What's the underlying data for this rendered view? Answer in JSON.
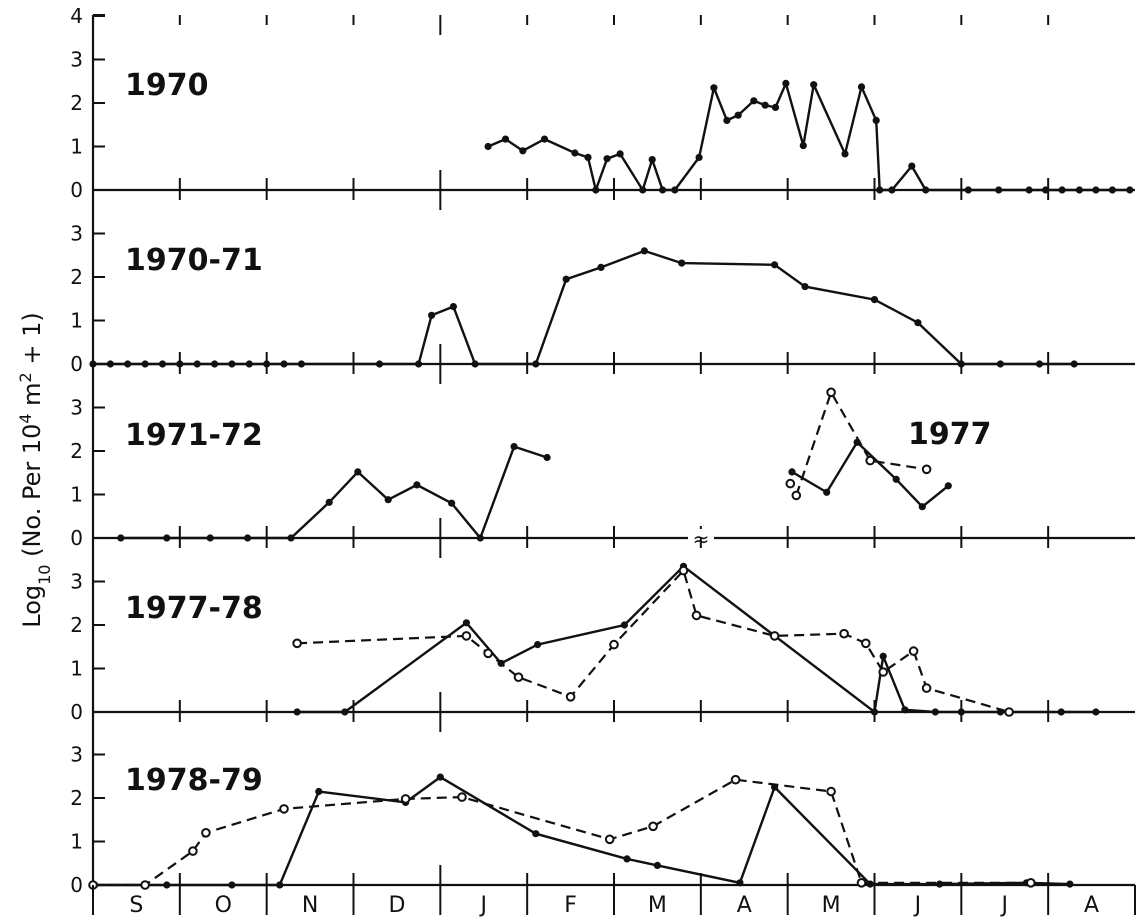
{
  "chart_data": {
    "type": "line",
    "ylabel": "Log10 (No. Per 10^4 m^2 + 1)",
    "ylabel_parts": {
      "base": "Log",
      "sub": "10",
      "mid": " (No. Per 10",
      "sup1": "4",
      "mid2": " m",
      "sup2": "2",
      "tail": " + 1)"
    },
    "months": [
      "S",
      "O",
      "N",
      "D",
      "J",
      "F",
      "M",
      "A",
      "M",
      "J",
      "J",
      "A"
    ],
    "x_units": "month index from 1 September (0 = Sep 1, 12 = Aug 31)",
    "break_mark": "≈",
    "panels": [
      {
        "title": "1970",
        "ylim": [
          0,
          4
        ],
        "yticks": [
          "0",
          "1",
          "2",
          "3",
          "4"
        ],
        "series": [
          {
            "style": "solid",
            "marker": "filled",
            "points": [
              [
                4.55,
                1.0
              ],
              [
                4.75,
                1.17
              ],
              [
                4.95,
                0.9
              ],
              [
                5.2,
                1.17
              ],
              [
                5.55,
                0.85
              ],
              [
                5.7,
                0.75
              ],
              [
                5.79,
                0.0
              ],
              [
                5.92,
                0.72
              ],
              [
                6.07,
                0.83
              ],
              [
                6.33,
                0.0
              ],
              [
                6.44,
                0.7
              ],
              [
                6.56,
                0.0
              ],
              [
                6.7,
                0.0
              ],
              [
                6.98,
                0.75
              ],
              [
                7.15,
                2.35
              ],
              [
                7.3,
                1.6
              ],
              [
                7.43,
                1.72
              ],
              [
                7.61,
                2.05
              ],
              [
                7.74,
                1.95
              ],
              [
                7.86,
                1.9
              ],
              [
                7.98,
                2.45
              ],
              [
                8.18,
                1.02
              ],
              [
                8.3,
                2.42
              ],
              [
                8.66,
                0.83
              ],
              [
                8.85,
                2.37
              ],
              [
                9.02,
                1.6
              ],
              [
                9.06,
                0.0
              ],
              [
                9.2,
                0.0
              ],
              [
                9.43,
                0.55
              ],
              [
                9.59,
                0.0
              ],
              [
                10.08,
                0.0
              ],
              [
                10.43,
                0.0
              ],
              [
                10.78,
                0.0
              ],
              [
                10.97,
                0.0
              ],
              [
                11.16,
                0.0
              ],
              [
                11.36,
                0.0
              ],
              [
                11.55,
                0.0
              ],
              [
                11.74,
                0.0
              ],
              [
                11.94,
                0.0
              ]
            ]
          }
        ]
      },
      {
        "title": "1970-71",
        "ylim": [
          0,
          3.5
        ],
        "yticks": [
          "0",
          "1",
          "2",
          "3"
        ],
        "series": [
          {
            "style": "solid",
            "marker": "filled",
            "points": [
              [
                0.0,
                0.0
              ],
              [
                0.2,
                0.0
              ],
              [
                0.4,
                0.0
              ],
              [
                0.6,
                0.0
              ],
              [
                0.8,
                0.0
              ],
              [
                1.0,
                0.0
              ],
              [
                1.2,
                0.0
              ],
              [
                1.4,
                0.0
              ],
              [
                1.6,
                0.0
              ],
              [
                1.8,
                0.0
              ],
              [
                2.0,
                0.0
              ],
              [
                2.2,
                0.0
              ],
              [
                2.4,
                0.0
              ],
              [
                3.3,
                0.0
              ],
              [
                3.75,
                0.0
              ],
              [
                3.9,
                1.12
              ],
              [
                4.15,
                1.32
              ],
              [
                4.4,
                0.0
              ],
              [
                5.1,
                0.0
              ],
              [
                5.45,
                1.95
              ],
              [
                5.85,
                2.22
              ],
              [
                6.35,
                2.6
              ],
              [
                6.78,
                2.32
              ],
              [
                7.85,
                2.28
              ],
              [
                8.2,
                1.78
              ],
              [
                9.0,
                1.48
              ],
              [
                9.5,
                0.95
              ],
              [
                10.0,
                0.0
              ],
              [
                10.45,
                0.0
              ],
              [
                10.9,
                0.0
              ],
              [
                11.3,
                0.0
              ]
            ]
          }
        ]
      },
      {
        "title": "1971-72",
        "ylim": [
          0,
          3.5
        ],
        "yticks": [
          "0",
          "1",
          "2",
          "3"
        ],
        "series": [
          {
            "style": "solid",
            "marker": "filled",
            "points": [
              [
                0.32,
                0.0
              ],
              [
                0.85,
                0.0
              ],
              [
                1.35,
                0.0
              ],
              [
                1.78,
                0.0
              ],
              [
                2.28,
                0.0
              ],
              [
                2.72,
                0.82
              ],
              [
                3.05,
                1.52
              ],
              [
                3.4,
                0.88
              ],
              [
                3.73,
                1.22
              ],
              [
                4.13,
                0.8
              ],
              [
                4.46,
                0.0
              ],
              [
                4.85,
                2.1
              ],
              [
                5.23,
                1.85
              ]
            ]
          }
        ],
        "inset": {
          "label": "1977",
          "series": [
            {
              "style": "solid",
              "marker": "filled",
              "points": [
                [
                  8.05,
                  1.52
                ],
                [
                  8.45,
                  1.05
                ],
                [
                  8.8,
                  2.2
                ],
                [
                  9.25,
                  1.35
                ],
                [
                  9.55,
                  0.72
                ],
                [
                  9.85,
                  1.2
                ]
              ]
            },
            {
              "style": "dashed",
              "marker": "open",
              "points": [
                [
                  8.1,
                  0.98
                ],
                [
                  8.5,
                  3.35
                ],
                [
                  8.95,
                  1.78
                ],
                [
                  9.6,
                  1.58
                ]
              ]
            },
            {
              "style": "none",
              "marker": "open",
              "points": [
                [
                  8.03,
                  1.25
                ]
              ]
            }
          ]
        }
      },
      {
        "title": "1977-78",
        "ylim": [
          0,
          3.5
        ],
        "yticks": [
          "0",
          "1",
          "2",
          "3"
        ],
        "series": [
          {
            "style": "solid",
            "marker": "filled",
            "points": [
              [
                2.35,
                0.0
              ],
              [
                2.9,
                0.0
              ],
              [
                4.3,
                2.05
              ],
              [
                4.7,
                1.12
              ],
              [
                5.12,
                1.55
              ],
              [
                6.12,
                2.0
              ],
              [
                6.8,
                3.35
              ],
              [
                9.0,
                0.0
              ],
              [
                9.1,
                1.28
              ],
              [
                9.35,
                0.05
              ],
              [
                9.7,
                0.0
              ],
              [
                10.0,
                0.0
              ],
              [
                10.45,
                0.0
              ],
              [
                11.15,
                0.0
              ],
              [
                11.55,
                0.0
              ]
            ]
          },
          {
            "style": "dashed",
            "marker": "open",
            "points": [
              [
                2.35,
                1.58
              ],
              [
                4.3,
                1.75
              ],
              [
                4.55,
                1.35
              ],
              [
                4.9,
                0.8
              ],
              [
                5.5,
                0.35
              ],
              [
                6.0,
                1.55
              ],
              [
                6.8,
                3.25
              ],
              [
                6.95,
                2.22
              ],
              [
                7.85,
                1.75
              ],
              [
                8.65,
                1.8
              ],
              [
                8.9,
                1.58
              ],
              [
                9.1,
                0.92
              ],
              [
                9.45,
                1.4
              ],
              [
                9.6,
                0.55
              ],
              [
                10.55,
                0.0
              ]
            ]
          }
        ]
      },
      {
        "title": "1978-79",
        "ylim": [
          0,
          3.5
        ],
        "yticks": [
          "0",
          "1",
          "2",
          "3"
        ],
        "series": [
          {
            "style": "solid",
            "marker": "filled",
            "points": [
              [
                0.02,
                0.0
              ],
              [
                0.85,
                0.0
              ],
              [
                1.6,
                0.0
              ],
              [
                2.15,
                0.0
              ],
              [
                2.6,
                2.15
              ],
              [
                3.6,
                1.9
              ],
              [
                4.0,
                2.48
              ],
              [
                5.1,
                1.18
              ],
              [
                6.15,
                0.6
              ],
              [
                6.5,
                0.45
              ],
              [
                7.45,
                0.05
              ],
              [
                7.85,
                2.25
              ],
              [
                8.95,
                0.02
              ],
              [
                9.75,
                0.02
              ],
              [
                10.75,
                0.05
              ],
              [
                11.25,
                0.02
              ]
            ]
          },
          {
            "style": "dashed",
            "marker": "open",
            "points": [
              [
                0.0,
                0.0
              ],
              [
                0.6,
                0.0
              ],
              [
                1.15,
                0.78
              ],
              [
                1.3,
                1.2
              ],
              [
                2.2,
                1.75
              ],
              [
                3.6,
                1.98
              ],
              [
                4.25,
                2.02
              ],
              [
                5.95,
                1.05
              ],
              [
                6.45,
                1.35
              ],
              [
                7.4,
                2.42
              ],
              [
                8.5,
                2.15
              ],
              [
                8.85,
                0.05
              ],
              [
                10.8,
                0.05
              ]
            ]
          }
        ]
      }
    ]
  }
}
